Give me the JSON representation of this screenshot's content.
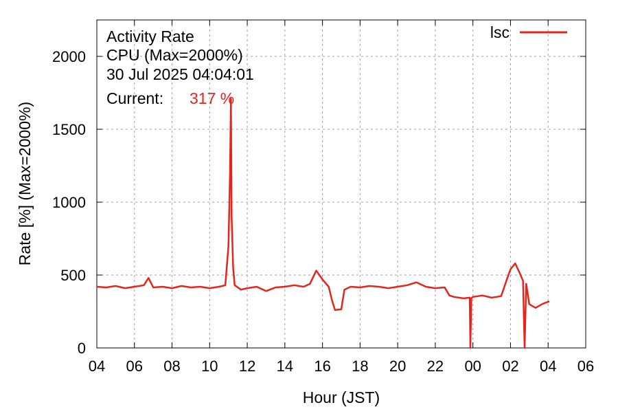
{
  "chart_data": {
    "type": "line",
    "title_lines": [
      "Activity Rate",
      "CPU (Max=2000%)",
      "30 Jul 2025 04:04:01"
    ],
    "current_label": "Current:",
    "current_value": "317 %",
    "xlabel": "Hour (JST)",
    "ylabel": "Rate [%]  (Max=2000%)",
    "x_ticks": [
      "04",
      "06",
      "08",
      "10",
      "12",
      "14",
      "16",
      "18",
      "20",
      "22",
      "00",
      "02",
      "04",
      "06"
    ],
    "y_ticks": [
      "0",
      "500",
      "1000",
      "1500",
      "2000"
    ],
    "ylim": [
      0,
      2250
    ],
    "grid": true,
    "legend_position": "top-right",
    "series_color": "#e8231b",
    "series": [
      {
        "name": "lsc",
        "points": [
          [
            "04:00",
            420
          ],
          [
            "04:30",
            415
          ],
          [
            "05:00",
            425
          ],
          [
            "05:30",
            410
          ],
          [
            "06:00",
            420
          ],
          [
            "06:30",
            430
          ],
          [
            "06:45",
            480
          ],
          [
            "07:00",
            415
          ],
          [
            "07:30",
            420
          ],
          [
            "08:00",
            410
          ],
          [
            "08:30",
            425
          ],
          [
            "09:00",
            415
          ],
          [
            "09:30",
            420
          ],
          [
            "10:00",
            410
          ],
          [
            "10:30",
            420
          ],
          [
            "10:50",
            430
          ],
          [
            "11:00",
            700
          ],
          [
            "11:05",
            1200
          ],
          [
            "11:08",
            1710
          ],
          [
            "11:10",
            900
          ],
          [
            "11:15",
            550
          ],
          [
            "11:20",
            430
          ],
          [
            "11:40",
            400
          ],
          [
            "12:00",
            410
          ],
          [
            "12:30",
            420
          ],
          [
            "13:00",
            390
          ],
          [
            "13:30",
            415
          ],
          [
            "14:00",
            420
          ],
          [
            "14:30",
            430
          ],
          [
            "15:00",
            420
          ],
          [
            "15:20",
            440
          ],
          [
            "15:40",
            530
          ],
          [
            "15:50",
            500
          ],
          [
            "16:00",
            470
          ],
          [
            "16:20",
            420
          ],
          [
            "16:30",
            330
          ],
          [
            "16:40",
            260
          ],
          [
            "17:00",
            265
          ],
          [
            "17:10",
            400
          ],
          [
            "17:30",
            420
          ],
          [
            "18:00",
            415
          ],
          [
            "18:30",
            425
          ],
          [
            "19:00",
            420
          ],
          [
            "19:30",
            410
          ],
          [
            "20:00",
            420
          ],
          [
            "20:30",
            430
          ],
          [
            "21:00",
            450
          ],
          [
            "21:30",
            420
          ],
          [
            "22:00",
            410
          ],
          [
            "22:30",
            415
          ],
          [
            "22:45",
            360
          ],
          [
            "23:00",
            350
          ],
          [
            "23:30",
            340
          ],
          [
            "23:50",
            345
          ],
          [
            "23:52",
            0
          ],
          [
            "23:55",
            340
          ],
          [
            "00:00",
            350
          ],
          [
            "00:30",
            360
          ],
          [
            "01:00",
            345
          ],
          [
            "01:30",
            355
          ],
          [
            "01:50",
            480
          ],
          [
            "02:00",
            540
          ],
          [
            "02:15",
            580
          ],
          [
            "02:30",
            510
          ],
          [
            "02:40",
            460
          ],
          [
            "02:45",
            0
          ],
          [
            "02:50",
            440
          ],
          [
            "03:00",
            300
          ],
          [
            "03:20",
            275
          ],
          [
            "03:40",
            300
          ],
          [
            "04:00",
            317
          ],
          [
            "04:04",
            317
          ]
        ]
      }
    ]
  }
}
